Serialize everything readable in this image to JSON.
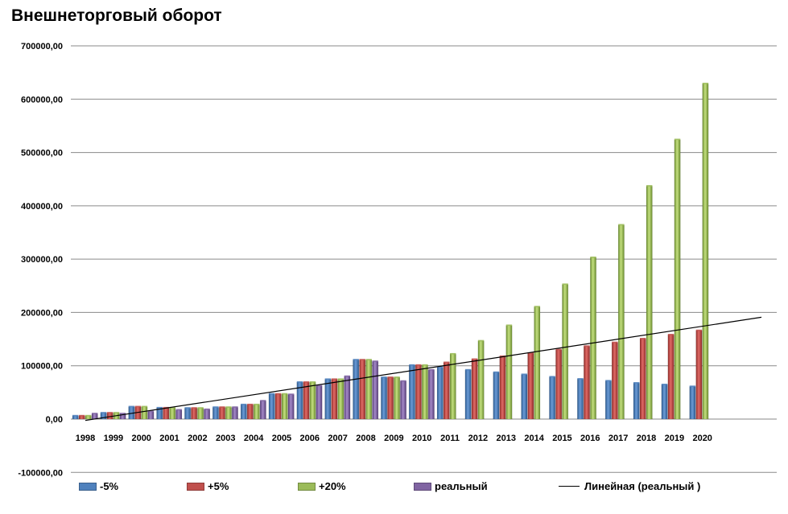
{
  "chart_data": {
    "type": "bar",
    "title": "Внешнеторговый оборот",
    "categories": [
      "1998",
      "1999",
      "2000",
      "2001",
      "2002",
      "2003",
      "2004",
      "2005",
      "2006",
      "2007",
      "2008",
      "2009",
      "2010",
      "2011",
      "2012",
      "2013",
      "2014",
      "2015",
      "2016",
      "2017",
      "2018",
      "2019",
      "2020"
    ],
    "series": [
      {
        "name": "-5%",
        "color": "#4f81bd",
        "values": [
          6000,
          11500,
          23000,
          21000,
          20500,
          22000,
          27000,
          47000,
          69000,
          74500,
          111000,
          78000,
          101000,
          97000,
          92000,
          87500,
          83500,
          79000,
          75000,
          71500,
          67500,
          64500,
          61000
        ]
      },
      {
        "name": "+5%",
        "color": "#c0504d",
        "values": [
          6000,
          11500,
          23000,
          21000,
          20500,
          22000,
          27000,
          47000,
          69000,
          74500,
          111000,
          78000,
          101000,
          106000,
          112000,
          117500,
          123500,
          130000,
          136500,
          143500,
          150500,
          158000,
          166000
        ]
      },
      {
        "name": "+20%",
        "color": "#9bbb59",
        "values": [
          6000,
          11500,
          23000,
          21000,
          20500,
          22000,
          27000,
          47000,
          69000,
          74500,
          111000,
          78000,
          101000,
          122000,
          146500,
          175500,
          210500,
          252500,
          303000,
          364000,
          437000,
          524000,
          629000
        ]
      },
      {
        "name": "реальный",
        "color": "#8064a2",
        "values": [
          10000,
          10000,
          14000,
          17000,
          18000,
          22000,
          34000,
          46000,
          62000,
          80000,
          108000,
          71000,
          92000,
          null,
          null,
          null,
          null,
          null,
          null,
          null,
          null,
          null,
          null
        ]
      }
    ],
    "trendline": {
      "name": "Линейная (реальный )",
      "color": "#000000",
      "start_value": -2500,
      "end_value": 191000
    },
    "y_ticks": [
      "-100000,00",
      "0,00",
      "100000,00",
      "200000,00",
      "300000,00",
      "400000,00",
      "500000,00",
      "600000,00",
      "700000,00"
    ],
    "ylim": [
      -100000,
      700000
    ],
    "grid": true,
    "legend_position": "bottom"
  }
}
